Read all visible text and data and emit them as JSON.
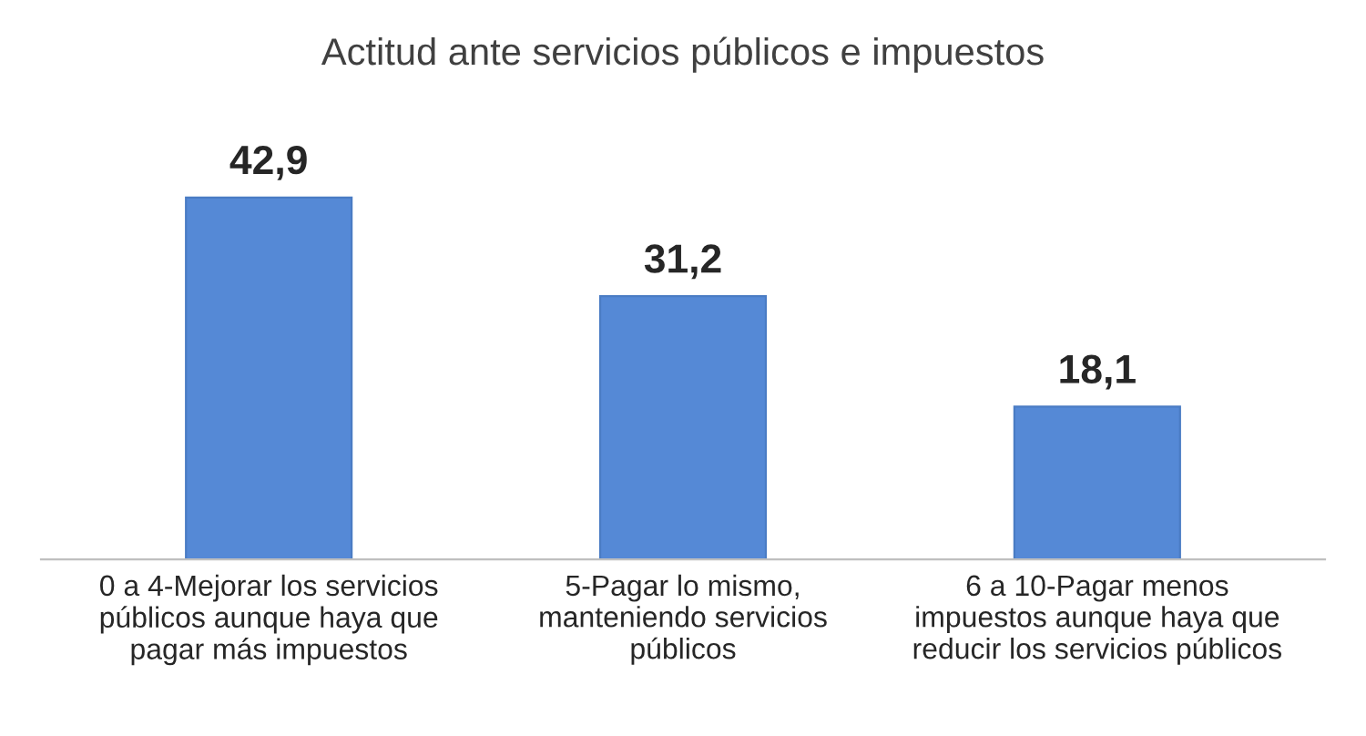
{
  "chart_data": {
    "type": "bar",
    "title": "Actitud ante servicios públicos e impuestos",
    "categories": [
      "0 a 4-Mejorar los servicios\npúblicos aunque haya que\npagar más impuestos",
      "5-Pagar lo mismo,\nmanteniendo servicios\npúblicos",
      "6 a 10-Pagar menos\nimpuestos aunque haya que\nreducir los servicios públicos"
    ],
    "values": [
      42.9,
      31.2,
      18.1
    ],
    "value_labels": [
      "42,9",
      "31,2",
      "18,1"
    ],
    "color": "#5589d6",
    "grid": false,
    "legend": false
  }
}
